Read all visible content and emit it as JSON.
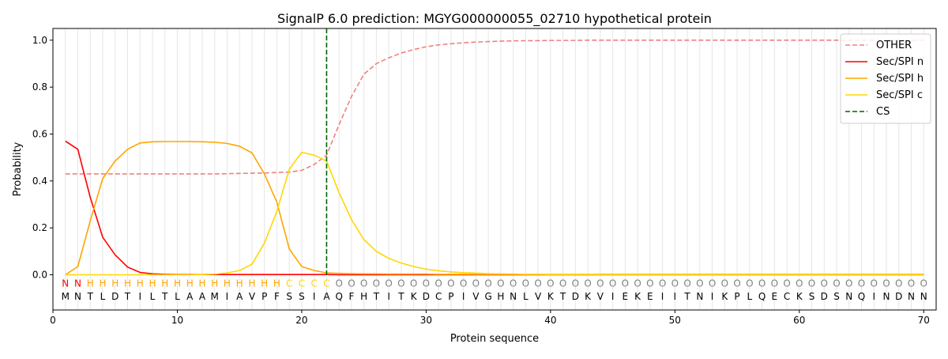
{
  "chart_data": {
    "type": "line",
    "title": "SignalP 6.0 prediction: MGYG000000055_02710 hypothetical protein",
    "xlabel": "Protein sequence",
    "ylabel": "Probability",
    "xlim": [
      0,
      71
    ],
    "ylim": [
      -0.15,
      1.05
    ],
    "x_ticks": [
      "0",
      "10",
      "20",
      "30",
      "40",
      "50",
      "60",
      "70"
    ],
    "y_ticks": [
      "0.0",
      "0.2",
      "0.4",
      "0.6",
      "0.8",
      "1.0"
    ],
    "legend_position": "top-right",
    "sequence": [
      "M",
      "N",
      "T",
      "L",
      "D",
      "T",
      "I",
      "L",
      "T",
      "L",
      "A",
      "A",
      "M",
      "I",
      "A",
      "V",
      "P",
      "F",
      "S",
      "S",
      "I",
      "A",
      "Q",
      "F",
      "H",
      "T",
      "I",
      "T",
      "K",
      "D",
      "C",
      "P",
      "I",
      "V",
      "G",
      "H",
      "N",
      "L",
      "V",
      "K",
      "T",
      "D",
      "K",
      "V",
      "I",
      "E",
      "K",
      "E",
      "I",
      "I",
      "T",
      "N",
      "I",
      "K",
      "P",
      "L",
      "Q",
      "E",
      "C",
      "K",
      "S",
      "D",
      "S",
      "N",
      "Q",
      "I",
      "N",
      "D",
      "N",
      "N"
    ],
    "labels": [
      "N",
      "N",
      "H",
      "H",
      "H",
      "H",
      "H",
      "H",
      "H",
      "H",
      "H",
      "H",
      "H",
      "H",
      "H",
      "H",
      "H",
      "H",
      "C",
      "C",
      "C",
      "C",
      "O",
      "O",
      "O",
      "O",
      "O",
      "O",
      "O",
      "O",
      "O",
      "O",
      "O",
      "O",
      "O",
      "O",
      "O",
      "O",
      "O",
      "O",
      "O",
      "O",
      "O",
      "O",
      "O",
      "O",
      "O",
      "O",
      "O",
      "O",
      "O",
      "O",
      "O",
      "O",
      "O",
      "O",
      "O",
      "O",
      "O",
      "O",
      "O",
      "O",
      "O",
      "O",
      "O",
      "O",
      "O",
      "O",
      "O",
      "O"
    ],
    "label_colors": {
      "N": "#ff0000",
      "H": "#ffa500",
      "C": "#ffd700",
      "O": "#808080"
    },
    "cs_position": 22,
    "series": [
      {
        "name": "OTHER",
        "color": "#f08080",
        "dash": true,
        "values": [
          0.43,
          0.43,
          0.43,
          0.43,
          0.43,
          0.43,
          0.43,
          0.43,
          0.43,
          0.43,
          0.43,
          0.43,
          0.43,
          0.431,
          0.432,
          0.433,
          0.434,
          0.436,
          0.438,
          0.445,
          0.47,
          0.51,
          0.64,
          0.76,
          0.855,
          0.9,
          0.925,
          0.945,
          0.96,
          0.972,
          0.98,
          0.985,
          0.989,
          0.992,
          0.994,
          0.996,
          0.997,
          0.998,
          0.998,
          0.999,
          0.999,
          0.999,
          1,
          1,
          1,
          1,
          1,
          1,
          1,
          1,
          1,
          1,
          1,
          1,
          1,
          1,
          1,
          1,
          1,
          1,
          1,
          1,
          1,
          1,
          1,
          1,
          1,
          1,
          1,
          1
        ]
      },
      {
        "name": "Sec/SPI n",
        "color": "#ff0000",
        "dash": false,
        "values": [
          0.57,
          0.535,
          0.33,
          0.16,
          0.085,
          0.033,
          0.01,
          0.004,
          0.002,
          0.001,
          0.001,
          0.001,
          0.001,
          0.001,
          0.001,
          0.001,
          0.001,
          0.001,
          0.001,
          0.001,
          0.001,
          0.001,
          0,
          0,
          0,
          0,
          0,
          0,
          0,
          0,
          0,
          0,
          0,
          0,
          0,
          0,
          0,
          0,
          0,
          0,
          0,
          0,
          0,
          0,
          0,
          0,
          0,
          0,
          0,
          0,
          0,
          0,
          0,
          0,
          0,
          0,
          0,
          0,
          0,
          0,
          0,
          0,
          0,
          0,
          0,
          0,
          0,
          0,
          0,
          0
        ]
      },
      {
        "name": "Sec/SPI h",
        "color": "#ffa500",
        "dash": false,
        "values": [
          0,
          0.035,
          0.23,
          0.41,
          0.485,
          0.535,
          0.562,
          0.567,
          0.568,
          0.568,
          0.568,
          0.567,
          0.565,
          0.56,
          0.548,
          0.52,
          0.43,
          0.31,
          0.11,
          0.035,
          0.018,
          0.008,
          0.006,
          0.005,
          0.004,
          0.004,
          0.003,
          0.003,
          0.003,
          0.003,
          0.002,
          0.002,
          0.002,
          0.002,
          0.002,
          0.002,
          0.002,
          0.002,
          0.002,
          0.002,
          0.002,
          0.002,
          0.002,
          0.002,
          0.002,
          0.002,
          0.002,
          0.002,
          0.002,
          0.002,
          0.002,
          0.002,
          0.002,
          0.002,
          0.002,
          0.002,
          0.002,
          0.002,
          0.002,
          0.002,
          0.002,
          0.002,
          0.002,
          0.002,
          0.002,
          0.002,
          0.002,
          0.002,
          0.002,
          0.002
        ]
      },
      {
        "name": "Sec/SPI c",
        "color": "#ffd700",
        "dash": false,
        "values": [
          0,
          0,
          0,
          0,
          0,
          0,
          0,
          0,
          0,
          0,
          0,
          0.001,
          0.003,
          0.008,
          0.018,
          0.045,
          0.135,
          0.27,
          0.45,
          0.522,
          0.51,
          0.485,
          0.35,
          0.235,
          0.15,
          0.1,
          0.07,
          0.05,
          0.035,
          0.024,
          0.017,
          0.012,
          0.009,
          0.007,
          0.005,
          0.004,
          0.003,
          0.002,
          0.002,
          0.001,
          0.001,
          0.001,
          0.001,
          0,
          0,
          0,
          0,
          0,
          0,
          0,
          0,
          0,
          0,
          0,
          0,
          0,
          0,
          0,
          0,
          0,
          0,
          0,
          0,
          0,
          0,
          0,
          0,
          0,
          0,
          0
        ]
      }
    ],
    "legend_cs": {
      "name": "CS",
      "color": "#006400"
    }
  }
}
